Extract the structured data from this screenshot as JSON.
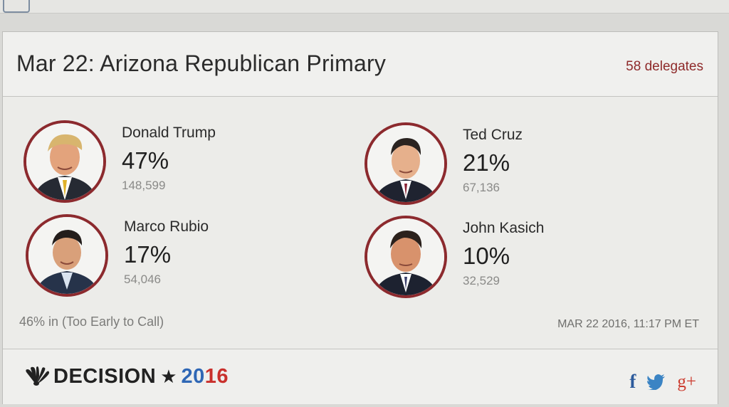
{
  "header": {
    "title": "Mar 22: Arizona Republican Primary",
    "delegates": "58 delegates"
  },
  "candidates": [
    {
      "name": "Donald Trump",
      "percent": "47%",
      "votes": "148,599",
      "icon": "candidate-photo"
    },
    {
      "name": "Ted Cruz",
      "percent": "21%",
      "votes": "67,136",
      "icon": "candidate-photo"
    },
    {
      "name": "Marco Rubio",
      "percent": "17%",
      "votes": "54,046",
      "icon": "candidate-photo"
    },
    {
      "name": "John Kasich",
      "percent": "10%",
      "votes": "32,529",
      "icon": "candidate-photo"
    }
  ],
  "status": {
    "reporting": "46% in (Too Early to Call)",
    "timestamp": "MAR 22 2016, 11:17 PM ET"
  },
  "footer": {
    "brand_word": "DECISION",
    "brand_star": "★",
    "brand_year_a": "20",
    "brand_year_b": "16",
    "facebook": "f",
    "googleplus": "g+"
  },
  "colors": {
    "accent_red": "#8c2a2e",
    "delegates": "#8e2a2a",
    "blue": "#2f67b5",
    "red": "#c9302c"
  }
}
